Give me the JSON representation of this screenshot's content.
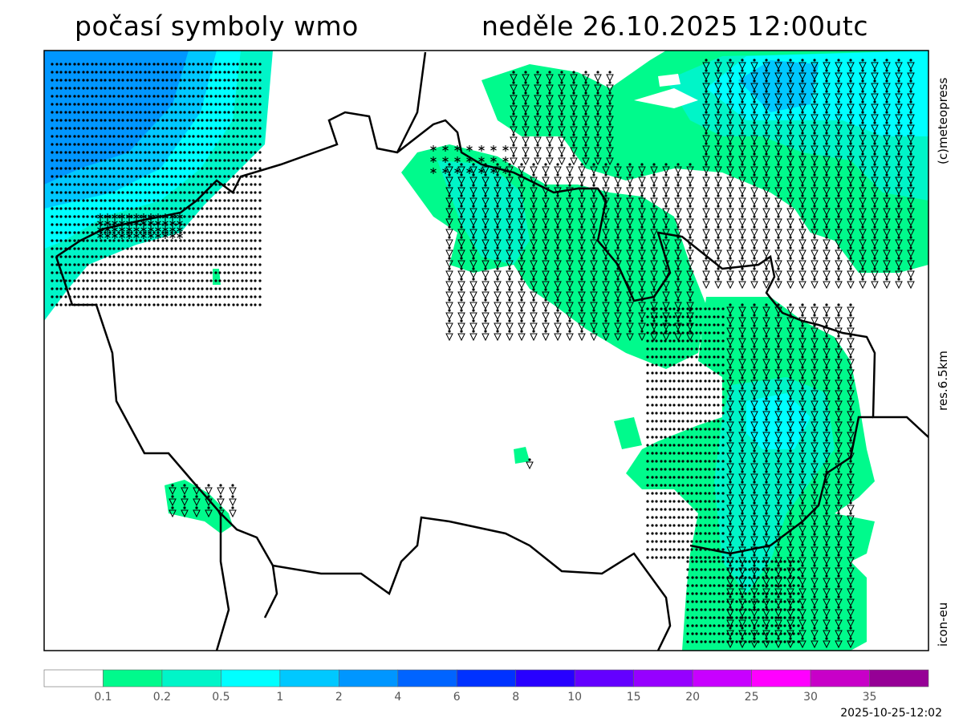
{
  "header": {
    "title_left": "počasí symboly wmo",
    "title_right": "neděle 26.10.2025 12:00utc"
  },
  "side_labels": {
    "copyright": "(c)meteopress",
    "resolution": "res.6.5km",
    "model": "icon-eu"
  },
  "legend": {
    "labels": [
      "0.1",
      "0.2",
      "0.5",
      "1",
      "2",
      "4",
      "6",
      "8",
      "10",
      "15",
      "20",
      "25",
      "30",
      "35"
    ],
    "colors": [
      "#ffffff",
      "#00fa8c",
      "#00f5c8",
      "#00ffff",
      "#00c8ff",
      "#0096ff",
      "#0064ff",
      "#0032ff",
      "#2800ff",
      "#6400ff",
      "#9600ff",
      "#c800ff",
      "#ff00ff",
      "#c800c8",
      "#960096"
    ]
  },
  "timestamp": "2025-10-25-12:02",
  "map": {
    "symbols": [
      "drizzle",
      "rain-shower",
      "snow",
      "snow-shower"
    ],
    "border_color": "#000000"
  }
}
